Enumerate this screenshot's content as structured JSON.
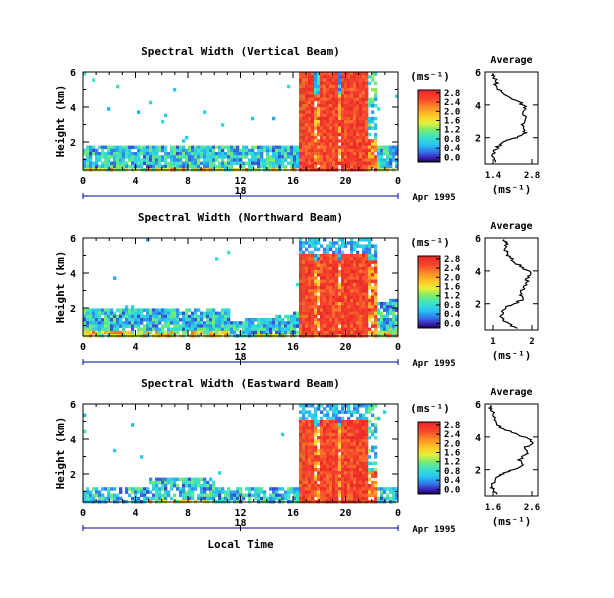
{
  "chart_data": [
    {
      "type": "heatmap",
      "title": "Spectral Width (Vertical Beam)",
      "ylabel": "Height (km)",
      "xlabel": "",
      "x_tick_labels": [
        "0",
        "4",
        "8",
        "12",
        "16",
        "20",
        "0"
      ],
      "x_ticks_hours": [
        0,
        4,
        8,
        12,
        16,
        20,
        24
      ],
      "xlim_hours": [
        0,
        24
      ],
      "y_tick_labels": [
        "2",
        "4",
        "6"
      ],
      "y_ticks": [
        2,
        4,
        6
      ],
      "ylim_km": [
        0.4,
        6
      ],
      "date_day": "18",
      "date_label": "Apr 1995",
      "colorbar_unit": "(ms⁻¹)",
      "colorbar_ticks": [
        "0.0",
        "0.4",
        "0.8",
        "1.2",
        "1.6",
        "2.0",
        "2.4",
        "2.8"
      ],
      "colorbar_range": [
        0,
        3
      ],
      "average": {
        "title": "Average",
        "xlabel": "(ms⁻¹)",
        "x_tick_labels": [
          "1.4",
          "2.8"
        ],
        "xlim": [
          1.2,
          3.0
        ],
        "profile_height_km": [
          0.5,
          0.8,
          1.0,
          1.3,
          1.6,
          1.8,
          2.0,
          2.3,
          2.6,
          3.0,
          3.3,
          3.6,
          3.9,
          4.2,
          4.5,
          4.8,
          5.1,
          5.4,
          5.7,
          5.9
        ],
        "profile_width_ms": [
          1.55,
          1.5,
          1.45,
          1.6,
          1.7,
          1.9,
          2.3,
          2.6,
          2.5,
          2.55,
          2.6,
          2.5,
          2.6,
          2.35,
          2.0,
          1.75,
          1.6,
          1.55,
          1.5,
          1.45
        ]
      }
    },
    {
      "type": "heatmap",
      "title": "Spectral Width (Northward Beam)",
      "ylabel": "Height (km)",
      "xlabel": "",
      "x_tick_labels": [
        "0",
        "4",
        "8",
        "12",
        "16",
        "20",
        "0"
      ],
      "x_ticks_hours": [
        0,
        4,
        8,
        12,
        16,
        20,
        24
      ],
      "xlim_hours": [
        0,
        24
      ],
      "y_tick_labels": [
        "2",
        "4",
        "6"
      ],
      "y_ticks": [
        2,
        4,
        6
      ],
      "ylim_km": [
        0.4,
        6
      ],
      "date_day": "18",
      "date_label": "Apr 1995",
      "colorbar_unit": "(ms⁻¹)",
      "colorbar_ticks": [
        "0.0",
        "0.4",
        "0.8",
        "1.2",
        "1.6",
        "2.0",
        "2.4",
        "2.8"
      ],
      "colorbar_range": [
        0,
        3
      ],
      "average": {
        "title": "Average",
        "xlabel": "(ms⁻¹)",
        "x_tick_labels": [
          "1",
          "2"
        ],
        "xlim": [
          0.8,
          2.6
        ],
        "profile_height_km": [
          0.5,
          0.8,
          1.0,
          1.3,
          1.6,
          1.8,
          2.0,
          2.3,
          2.6,
          3.0,
          3.3,
          3.6,
          3.9,
          4.2,
          4.5,
          4.8,
          5.1,
          5.4,
          5.7,
          5.9
        ],
        "profile_width_ms": [
          1.9,
          1.6,
          1.4,
          1.35,
          1.4,
          1.5,
          1.8,
          2.1,
          2.05,
          2.1,
          2.2,
          2.3,
          2.35,
          2.1,
          1.8,
          1.65,
          1.55,
          1.5,
          1.5,
          1.45
        ]
      }
    },
    {
      "type": "heatmap",
      "title": "Spectral Width (Eastward Beam)",
      "ylabel": "Height (km)",
      "xlabel": "Local Time",
      "x_tick_labels": [
        "0",
        "4",
        "8",
        "12",
        "16",
        "20",
        "0"
      ],
      "x_ticks_hours": [
        0,
        4,
        8,
        12,
        16,
        20,
        24
      ],
      "xlim_hours": [
        0,
        24
      ],
      "y_tick_labels": [
        "2",
        "4",
        "6"
      ],
      "y_ticks": [
        2,
        4,
        6
      ],
      "ylim_km": [
        0.4,
        6
      ],
      "date_day": "18",
      "date_label": "Apr 1995",
      "colorbar_unit": "(ms⁻¹)",
      "colorbar_ticks": [
        "0.0",
        "0.4",
        "0.8",
        "1.2",
        "1.6",
        "2.0",
        "2.4",
        "2.8"
      ],
      "colorbar_range": [
        0,
        3
      ],
      "average": {
        "title": "Average",
        "xlabel": "(ms⁻¹)",
        "x_tick_labels": [
          "1.6",
          "2.6"
        ],
        "xlim": [
          1.4,
          3.0
        ],
        "profile_height_km": [
          0.5,
          0.8,
          1.0,
          1.3,
          1.6,
          1.8,
          2.0,
          2.3,
          2.6,
          3.0,
          3.3,
          3.6,
          3.9,
          4.2,
          4.5,
          4.8,
          5.1,
          5.4,
          5.7,
          5.9
        ],
        "profile_width_ms": [
          1.75,
          1.65,
          1.6,
          1.7,
          1.8,
          1.95,
          2.25,
          2.55,
          2.4,
          2.7,
          2.6,
          2.85,
          2.7,
          2.35,
          1.95,
          1.75,
          1.7,
          1.65,
          1.6,
          1.55
        ]
      }
    }
  ]
}
